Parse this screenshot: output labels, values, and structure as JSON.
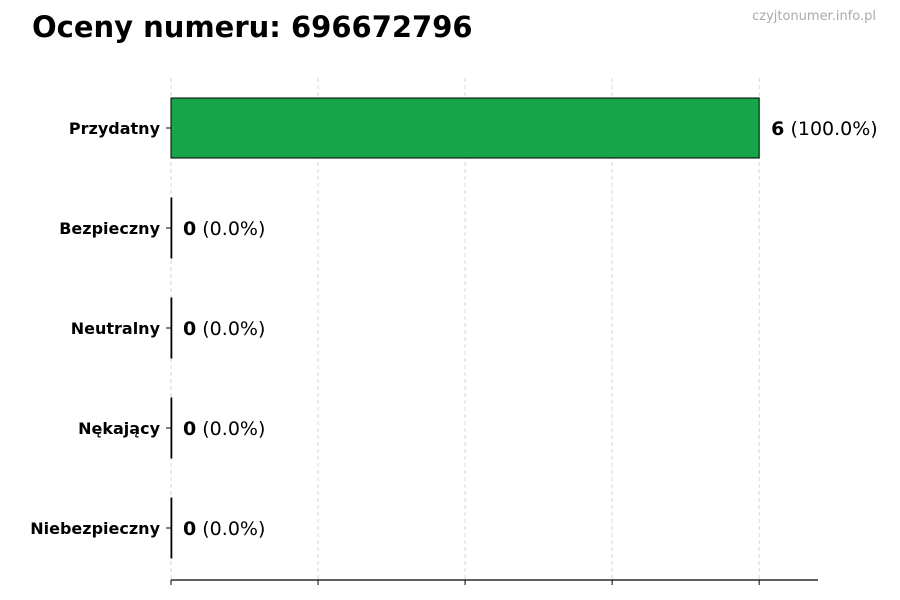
{
  "title": "Oceny numeru: 696672796",
  "watermark": "czyjtonumer.info.pl",
  "chart_data": {
    "type": "bar",
    "orientation": "horizontal",
    "title": "Oceny numeru: 696672796",
    "categories": [
      "Przydatny",
      "Bezpieczny",
      "Neutralny",
      "Nękający",
      "Niebezpieczny"
    ],
    "values": [
      6,
      0,
      0,
      0,
      0
    ],
    "labels": [
      {
        "count": "6",
        "pct": "(100.0%)"
      },
      {
        "count": "0",
        "pct": "(0.0%)"
      },
      {
        "count": "0",
        "pct": "(0.0%)"
      },
      {
        "count": "0",
        "pct": "(0.0%)"
      },
      {
        "count": "0",
        "pct": "(0.0%)"
      }
    ],
    "xlim": [
      0,
      6.6
    ],
    "xticks": [
      0,
      1.5,
      3,
      4.5,
      6
    ],
    "xtick_labels_shown": false,
    "grid": "vertical dashed",
    "bar_color": "#17a54a",
    "xlabel": "",
    "ylabel": ""
  }
}
